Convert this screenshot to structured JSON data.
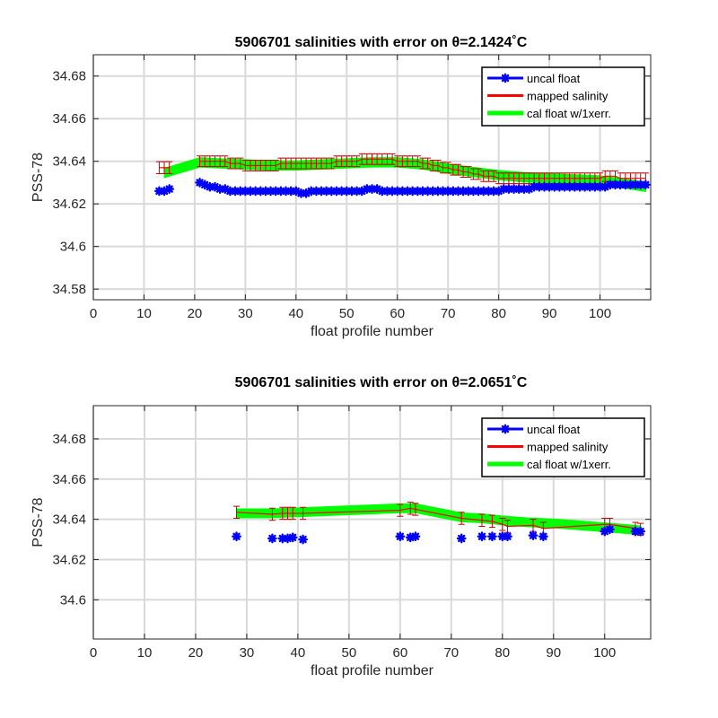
{
  "colors": {
    "uncal": "#0000ff",
    "mapped": "#ff0000",
    "errorbar": "#cc0000",
    "cal": "#00ff00"
  },
  "chart_data": [
    {
      "type": "line",
      "title": "5906701 salinities with error on θ=2.1424˚C",
      "xlabel": "float profile number",
      "ylabel": "PSS-78",
      "xlim": [
        0,
        110
      ],
      "ylim": [
        34.575,
        34.69
      ],
      "xticks": [
        "0",
        "10",
        "20",
        "30",
        "40",
        "50",
        "60",
        "70",
        "80",
        "90",
        "100"
      ],
      "yticks": [
        "34.58",
        "34.6",
        "34.62",
        "34.64",
        "34.66",
        "34.68"
      ],
      "grid": true,
      "legend": {
        "position": "top-right",
        "entries": [
          "uncal float",
          "mapped salinity",
          "cal float w/1xerr."
        ]
      },
      "series": [
        {
          "name": "uncal float",
          "marker": "*",
          "segments": [
            {
              "x": [
                13,
                14,
                15
              ],
              "y": [
                34.626,
                34.626,
                34.627
              ]
            },
            {
              "x": [
                21,
                22,
                23,
                24,
                25,
                26,
                27,
                28,
                29,
                30,
                31,
                32,
                33,
                34,
                35,
                36,
                37,
                38,
                39,
                40,
                41,
                42,
                43,
                44,
                45,
                46,
                47,
                48,
                49,
                50,
                51,
                52,
                53,
                54,
                55,
                56,
                57,
                58,
                59,
                60,
                61,
                62,
                63,
                64,
                65,
                66,
                67,
                68,
                69,
                70,
                71,
                72,
                73,
                74,
                75,
                76,
                77,
                78,
                79,
                80,
                81,
                82,
                83,
                84,
                85,
                86,
                87,
                88,
                89,
                90,
                91,
                92,
                93,
                94,
                95,
                96,
                97,
                98,
                99,
                100,
                101,
                102,
                103,
                104,
                105,
                106,
                107,
                108,
                109
              ],
              "y": [
                34.63,
                34.629,
                34.628,
                34.628,
                34.627,
                34.627,
                34.626,
                34.626,
                34.626,
                34.626,
                34.626,
                34.626,
                34.626,
                34.626,
                34.626,
                34.626,
                34.626,
                34.626,
                34.626,
                34.626,
                34.625,
                34.625,
                34.626,
                34.626,
                34.626,
                34.626,
                34.626,
                34.626,
                34.626,
                34.626,
                34.626,
                34.626,
                34.626,
                34.627,
                34.627,
                34.627,
                34.626,
                34.626,
                34.626,
                34.626,
                34.626,
                34.626,
                34.626,
                34.626,
                34.626,
                34.626,
                34.626,
                34.626,
                34.626,
                34.626,
                34.626,
                34.626,
                34.626,
                34.626,
                34.626,
                34.626,
                34.626,
                34.626,
                34.626,
                34.626,
                34.627,
                34.627,
                34.627,
                34.627,
                34.627,
                34.627,
                34.628,
                34.628,
                34.628,
                34.628,
                34.628,
                34.628,
                34.628,
                34.628,
                34.628,
                34.628,
                34.628,
                34.628,
                34.628,
                34.628,
                34.628,
                34.629,
                34.629,
                34.629,
                34.629,
                34.629,
                34.629,
                34.629,
                34.629
              ]
            }
          ]
        },
        {
          "name": "mapped salinity",
          "segments": [
            {
              "x": [
                13,
                14,
                15
              ],
              "y": [
                34.637,
                34.637,
                34.637
              ],
              "err": 0.0028
            },
            {
              "x": [
                21,
                22,
                23,
                24,
                25,
                26,
                27,
                28,
                29,
                30,
                31,
                32,
                33,
                34,
                35,
                36,
                37,
                38,
                39,
                40,
                41,
                42,
                43,
                44,
                45,
                46,
                47,
                48,
                49,
                50,
                51,
                52,
                53,
                54,
                55,
                56,
                57,
                58,
                59,
                60,
                61,
                62,
                63,
                64,
                65,
                66,
                67,
                68,
                69,
                70,
                71,
                72,
                73,
                74,
                75,
                76,
                77,
                78,
                79,
                80,
                81,
                82,
                83,
                84,
                85,
                86,
                87,
                88,
                89,
                90,
                91,
                92,
                93,
                94,
                95,
                96,
                97,
                98,
                99,
                100,
                101,
                102,
                103,
                104,
                105,
                106,
                107,
                108,
                109
              ],
              "y": [
                34.64,
                34.64,
                34.64,
                34.64,
                34.64,
                34.64,
                34.639,
                34.639,
                34.639,
                34.638,
                34.638,
                34.638,
                34.638,
                34.638,
                34.638,
                34.638,
                34.639,
                34.639,
                34.639,
                34.639,
                34.639,
                34.639,
                34.639,
                34.639,
                34.639,
                34.639,
                34.639,
                34.64,
                34.64,
                34.64,
                34.64,
                34.64,
                34.641,
                34.641,
                34.641,
                34.641,
                34.641,
                34.641,
                34.641,
                34.64,
                34.64,
                34.64,
                34.64,
                34.64,
                34.639,
                34.639,
                34.638,
                34.638,
                34.637,
                34.637,
                34.636,
                34.636,
                34.635,
                34.635,
                34.634,
                34.634,
                34.633,
                34.633,
                34.633,
                34.632,
                34.632,
                34.632,
                34.632,
                34.632,
                34.632,
                34.632,
                34.632,
                34.632,
                34.632,
                34.632,
                34.632,
                34.632,
                34.632,
                34.632,
                34.632,
                34.632,
                34.632,
                34.632,
                34.632,
                34.632,
                34.633,
                34.633,
                34.633,
                34.632,
                34.632,
                34.632,
                34.632,
                34.632,
                34.632
              ],
              "err": 0.0025
            }
          ]
        },
        {
          "name": "cal float w/1xerr.",
          "segments": [
            {
              "x": [
                14,
                21,
                25,
                30,
                35,
                40,
                45,
                50,
                55,
                60,
                65,
                70,
                75,
                80,
                85,
                90,
                95,
                100,
                105,
                109
              ],
              "y": [
                34.6345,
                34.6395,
                34.639,
                34.6385,
                34.638,
                34.638,
                34.6385,
                34.639,
                34.6395,
                34.6395,
                34.6385,
                34.6365,
                34.635,
                34.6335,
                34.6325,
                34.632,
                34.6315,
                34.631,
                34.6295,
                34.628
              ],
              "halfwidth": 0.0022
            }
          ]
        }
      ]
    },
    {
      "type": "line",
      "title": "5906701 salinities with error on θ=2.0651˚C",
      "xlabel": "float profile number",
      "ylabel": "PSS-78",
      "xlim": [
        0,
        109
      ],
      "ylim": [
        34.5805,
        34.6965
      ],
      "xticks": [
        "0",
        "10",
        "20",
        "30",
        "40",
        "50",
        "60",
        "70",
        "80",
        "90",
        "100"
      ],
      "yticks": [
        "34.6",
        "34.62",
        "34.64",
        "34.66",
        "34.68"
      ],
      "grid": true,
      "legend": {
        "position": "top-right",
        "entries": [
          "uncal float",
          "mapped salinity",
          "cal float w/1xerr."
        ]
      },
      "series": [
        {
          "name": "uncal float",
          "marker": "*",
          "segments": [
            {
              "x": [
                28,
                35,
                37,
                38,
                39,
                41,
                60,
                62,
                63,
                72,
                76,
                78,
                80,
                81,
                86,
                88,
                100,
                101,
                106,
                107
              ],
              "y": [
                34.6315,
                34.6305,
                34.6305,
                34.6305,
                34.631,
                34.63,
                34.6315,
                34.631,
                34.6315,
                34.6305,
                34.6315,
                34.6315,
                34.6315,
                34.6315,
                34.632,
                34.6315,
                34.634,
                34.635,
                34.634,
                34.634
              ]
            }
          ]
        },
        {
          "name": "mapped salinity",
          "segments": [
            {
              "x": [
                28,
                35,
                37,
                38,
                39,
                41,
                60,
                62,
                63,
                72,
                76,
                78,
                80,
                81,
                86,
                88,
                100,
                101,
                106,
                107
              ],
              "y": [
                34.6435,
                34.6425,
                34.643,
                34.643,
                34.643,
                34.643,
                34.6445,
                34.6455,
                34.645,
                34.6405,
                34.6395,
                34.639,
                34.6375,
                34.6365,
                34.637,
                34.6355,
                34.6375,
                34.6375,
                34.6355,
                34.635
              ],
              "err": 0.003
            }
          ]
        },
        {
          "name": "cal float w/1xerr.",
          "segments": [
            {
              "x": [
                28,
                35,
                40,
                45,
                50,
                55,
                60,
                63,
                72,
                76,
                80,
                85,
                90,
                95,
                100,
                105,
                107
              ],
              "y": [
                34.643,
                34.643,
                34.6435,
                34.644,
                34.6445,
                34.645,
                34.6455,
                34.6455,
                34.641,
                34.6405,
                34.6395,
                34.6385,
                34.638,
                34.637,
                34.636,
                34.635,
                34.6345
              ],
              "halfwidth": 0.0022
            }
          ]
        }
      ]
    }
  ]
}
